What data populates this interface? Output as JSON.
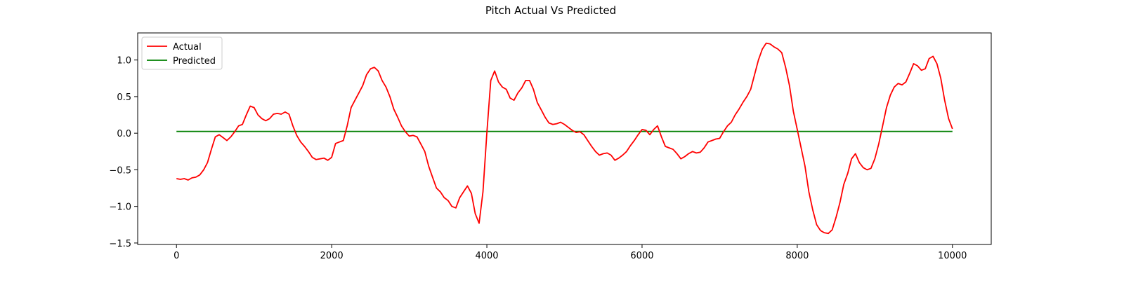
{
  "chart_data": {
    "type": "line",
    "title": "Pitch Actual Vs Predicted",
    "xlabel": "",
    "ylabel": "",
    "xlim": [
      -500,
      10500
    ],
    "ylim": [
      -1.52,
      1.37
    ],
    "x_ticks": [
      0,
      2000,
      4000,
      6000,
      8000,
      10000
    ],
    "x_tick_labels": [
      "0",
      "2000",
      "4000",
      "6000",
      "8000",
      "10000"
    ],
    "y_ticks": [
      -1.5,
      -1.0,
      -0.5,
      0.0,
      0.5,
      1.0
    ],
    "y_tick_labels": [
      "−1.5",
      "−1.0",
      "−0.5",
      "0.0",
      "0.5",
      "1.0"
    ],
    "grid": false,
    "legend": {
      "placement": "top-left",
      "entries": [
        "Actual",
        "Predicted"
      ]
    },
    "series": [
      {
        "name": "Actual",
        "color": "#ff0000",
        "points": [
          [
            0,
            -0.62
          ],
          [
            50,
            -0.63
          ],
          [
            100,
            -0.62
          ],
          [
            150,
            -0.64
          ],
          [
            200,
            -0.61
          ],
          [
            250,
            -0.6
          ],
          [
            300,
            -0.57
          ],
          [
            350,
            -0.5
          ],
          [
            400,
            -0.4
          ],
          [
            450,
            -0.22
          ],
          [
            500,
            -0.05
          ],
          [
            550,
            -0.02
          ],
          [
            600,
            -0.06
          ],
          [
            650,
            -0.1
          ],
          [
            700,
            -0.05
          ],
          [
            750,
            0.02
          ],
          [
            800,
            0.1
          ],
          [
            850,
            0.12
          ],
          [
            900,
            0.25
          ],
          [
            950,
            0.37
          ],
          [
            1000,
            0.35
          ],
          [
            1050,
            0.25
          ],
          [
            1100,
            0.2
          ],
          [
            1150,
            0.17
          ],
          [
            1200,
            0.2
          ],
          [
            1250,
            0.26
          ],
          [
            1300,
            0.27
          ],
          [
            1350,
            0.26
          ],
          [
            1400,
            0.29
          ],
          [
            1450,
            0.26
          ],
          [
            1500,
            0.1
          ],
          [
            1550,
            -0.03
          ],
          [
            1600,
            -0.12
          ],
          [
            1650,
            -0.18
          ],
          [
            1700,
            -0.25
          ],
          [
            1750,
            -0.33
          ],
          [
            1800,
            -0.36
          ],
          [
            1850,
            -0.35
          ],
          [
            1900,
            -0.34
          ],
          [
            1950,
            -0.37
          ],
          [
            2000,
            -0.33
          ],
          [
            2050,
            -0.14
          ],
          [
            2100,
            -0.12
          ],
          [
            2150,
            -0.1
          ],
          [
            2200,
            0.1
          ],
          [
            2250,
            0.35
          ],
          [
            2300,
            0.45
          ],
          [
            2350,
            0.55
          ],
          [
            2400,
            0.65
          ],
          [
            2450,
            0.8
          ],
          [
            2500,
            0.88
          ],
          [
            2550,
            0.9
          ],
          [
            2600,
            0.85
          ],
          [
            2650,
            0.72
          ],
          [
            2700,
            0.63
          ],
          [
            2750,
            0.5
          ],
          [
            2800,
            0.33
          ],
          [
            2850,
            0.22
          ],
          [
            2900,
            0.1
          ],
          [
            2950,
            0.02
          ],
          [
            3000,
            -0.04
          ],
          [
            3050,
            -0.03
          ],
          [
            3100,
            -0.05
          ],
          [
            3150,
            -0.15
          ],
          [
            3200,
            -0.25
          ],
          [
            3250,
            -0.45
          ],
          [
            3300,
            -0.6
          ],
          [
            3350,
            -0.75
          ],
          [
            3400,
            -0.8
          ],
          [
            3450,
            -0.88
          ],
          [
            3500,
            -0.92
          ],
          [
            3550,
            -1.0
          ],
          [
            3600,
            -1.02
          ],
          [
            3650,
            -0.88
          ],
          [
            3700,
            -0.8
          ],
          [
            3750,
            -0.72
          ],
          [
            3800,
            -0.82
          ],
          [
            3850,
            -1.1
          ],
          [
            3900,
            -1.23
          ],
          [
            3950,
            -0.8
          ],
          [
            4000,
            0.0
          ],
          [
            4050,
            0.72
          ],
          [
            4100,
            0.85
          ],
          [
            4150,
            0.7
          ],
          [
            4200,
            0.63
          ],
          [
            4250,
            0.6
          ],
          [
            4300,
            0.48
          ],
          [
            4350,
            0.45
          ],
          [
            4400,
            0.55
          ],
          [
            4450,
            0.62
          ],
          [
            4500,
            0.72
          ],
          [
            4550,
            0.72
          ],
          [
            4600,
            0.6
          ],
          [
            4650,
            0.42
          ],
          [
            4700,
            0.32
          ],
          [
            4750,
            0.22
          ],
          [
            4800,
            0.14
          ],
          [
            4850,
            0.12
          ],
          [
            4900,
            0.13
          ],
          [
            4950,
            0.15
          ],
          [
            5000,
            0.12
          ],
          [
            5050,
            0.08
          ],
          [
            5100,
            0.04
          ],
          [
            5150,
            0.01
          ],
          [
            5200,
            0.02
          ],
          [
            5250,
            -0.02
          ],
          [
            5300,
            -0.1
          ],
          [
            5350,
            -0.18
          ],
          [
            5400,
            -0.25
          ],
          [
            5450,
            -0.3
          ],
          [
            5500,
            -0.28
          ],
          [
            5550,
            -0.27
          ],
          [
            5600,
            -0.3
          ],
          [
            5650,
            -0.37
          ],
          [
            5700,
            -0.34
          ],
          [
            5750,
            -0.3
          ],
          [
            5800,
            -0.25
          ],
          [
            5850,
            -0.17
          ],
          [
            5900,
            -0.1
          ],
          [
            5950,
            -0.02
          ],
          [
            6000,
            0.05
          ],
          [
            6050,
            0.04
          ],
          [
            6100,
            -0.02
          ],
          [
            6150,
            0.05
          ],
          [
            6200,
            0.1
          ],
          [
            6250,
            -0.05
          ],
          [
            6300,
            -0.18
          ],
          [
            6350,
            -0.2
          ],
          [
            6400,
            -0.22
          ],
          [
            6450,
            -0.28
          ],
          [
            6500,
            -0.35
          ],
          [
            6550,
            -0.32
          ],
          [
            6600,
            -0.28
          ],
          [
            6650,
            -0.25
          ],
          [
            6700,
            -0.27
          ],
          [
            6750,
            -0.26
          ],
          [
            6800,
            -0.2
          ],
          [
            6850,
            -0.12
          ],
          [
            6900,
            -0.1
          ],
          [
            6950,
            -0.08
          ],
          [
            7000,
            -0.07
          ],
          [
            7050,
            0.02
          ],
          [
            7100,
            0.1
          ],
          [
            7150,
            0.15
          ],
          [
            7200,
            0.25
          ],
          [
            7250,
            0.33
          ],
          [
            7300,
            0.42
          ],
          [
            7350,
            0.5
          ],
          [
            7400,
            0.6
          ],
          [
            7450,
            0.8
          ],
          [
            7500,
            1.0
          ],
          [
            7550,
            1.15
          ],
          [
            7600,
            1.23
          ],
          [
            7650,
            1.22
          ],
          [
            7700,
            1.18
          ],
          [
            7750,
            1.15
          ],
          [
            7800,
            1.1
          ],
          [
            7850,
            0.9
          ],
          [
            7900,
            0.65
          ],
          [
            7950,
            0.3
          ],
          [
            8000,
            0.05
          ],
          [
            8050,
            -0.2
          ],
          [
            8100,
            -0.45
          ],
          [
            8150,
            -0.8
          ],
          [
            8200,
            -1.05
          ],
          [
            8250,
            -1.25
          ],
          [
            8300,
            -1.33
          ],
          [
            8350,
            -1.36
          ],
          [
            8400,
            -1.37
          ],
          [
            8450,
            -1.32
          ],
          [
            8500,
            -1.15
          ],
          [
            8550,
            -0.95
          ],
          [
            8600,
            -0.7
          ],
          [
            8650,
            -0.55
          ],
          [
            8700,
            -0.35
          ],
          [
            8750,
            -0.28
          ],
          [
            8800,
            -0.4
          ],
          [
            8850,
            -0.47
          ],
          [
            8900,
            -0.5
          ],
          [
            8950,
            -0.48
          ],
          [
            9000,
            -0.35
          ],
          [
            9050,
            -0.15
          ],
          [
            9100,
            0.1
          ],
          [
            9150,
            0.35
          ],
          [
            9200,
            0.52
          ],
          [
            9250,
            0.63
          ],
          [
            9300,
            0.68
          ],
          [
            9350,
            0.66
          ],
          [
            9400,
            0.7
          ],
          [
            9450,
            0.82
          ],
          [
            9500,
            0.95
          ],
          [
            9550,
            0.92
          ],
          [
            9600,
            0.86
          ],
          [
            9650,
            0.88
          ],
          [
            9700,
            1.02
          ],
          [
            9750,
            1.05
          ],
          [
            9800,
            0.95
          ],
          [
            9850,
            0.75
          ],
          [
            9900,
            0.45
          ],
          [
            9950,
            0.2
          ],
          [
            10000,
            0.06
          ]
        ]
      },
      {
        "name": "Predicted",
        "color": "#008000",
        "points": [
          [
            0,
            0.025
          ],
          [
            10000,
            0.025
          ]
        ]
      }
    ]
  }
}
